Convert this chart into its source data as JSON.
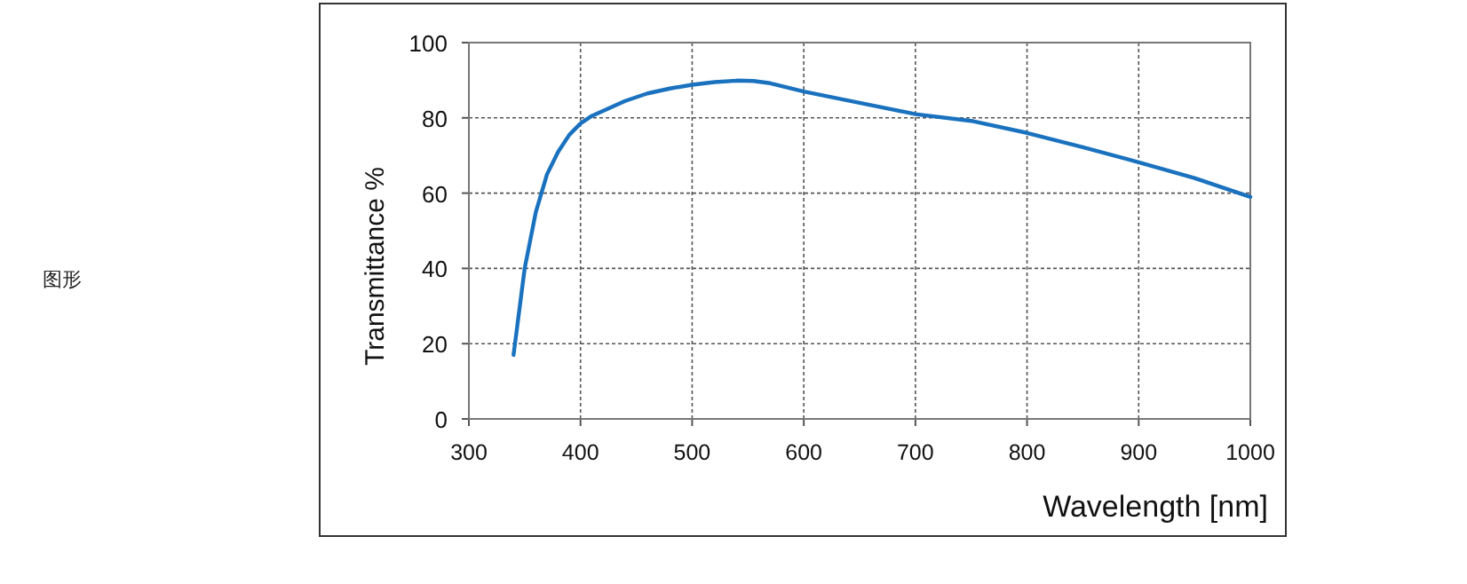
{
  "chart_data": {
    "type": "line",
    "xlabel": "Wavelength [nm]",
    "ylabel": "Transmittance %",
    "annotations": [
      "图形"
    ],
    "x": [
      340,
      350,
      360,
      370,
      380,
      390,
      400,
      410,
      425,
      440,
      460,
      480,
      500,
      520,
      540,
      555,
      570,
      600,
      650,
      700,
      750,
      800,
      850,
      900,
      950,
      1000
    ],
    "series": [
      {
        "color": "#1a72bf",
        "values": [
          17,
          40,
          55,
          65,
          71,
          75.5,
          78.5,
          80.5,
          82.5,
          84.5,
          86.5,
          87.8,
          88.8,
          89.5,
          89.9,
          89.8,
          89.2,
          87,
          84,
          81,
          79.2,
          76,
          72.2,
          68.2,
          64,
          59
        ]
      }
    ],
    "xlim": [
      300,
      1000
    ],
    "ylim": [
      0,
      100
    ],
    "xticks": [
      300,
      400,
      500,
      600,
      700,
      800,
      900,
      1000
    ],
    "yticks": [
      0,
      20,
      40,
      60,
      80,
      100
    ],
    "grid": true,
    "marker": "none",
    "line_style": "solid"
  }
}
